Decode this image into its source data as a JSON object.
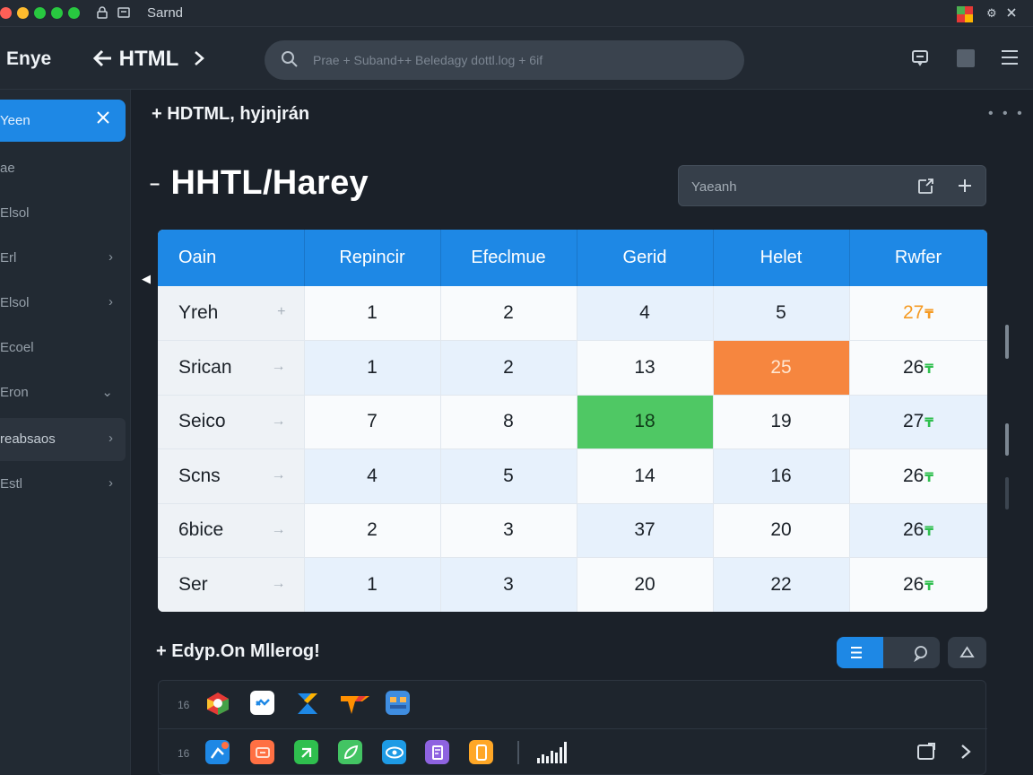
{
  "titlebar": {
    "title": "Sarnd",
    "traffic_colors": [
      "#ff5f57",
      "#febc2e",
      "#28c840",
      "#28c840",
      "#28c840"
    ]
  },
  "nav": {
    "brand": "Enye",
    "crumb": "HTML",
    "search_placeholder": "Prae + Suband++ Beledagy dottl.log + 6if"
  },
  "sidebar": {
    "active": {
      "label": "Yeen"
    },
    "items": [
      {
        "label": "ae",
        "chevron": ""
      },
      {
        "label": "Elsol",
        "chevron": ""
      },
      {
        "label": "Erl",
        "chevron": "›"
      },
      {
        "label": "Elsol",
        "chevron": "›"
      },
      {
        "label": "Ecoel",
        "chevron": ""
      },
      {
        "label": "Eron",
        "chevron": "⌄"
      },
      {
        "label": "reabsaos",
        "chevron": "›"
      },
      {
        "label": "Estl",
        "chevron": "›"
      }
    ]
  },
  "main": {
    "section1": "HDTML, hyjnjrán",
    "title": "HHTL/Harey",
    "filter_placeholder": "Yaeanh",
    "section2": "Edyp.On Mllerog!"
  },
  "table": {
    "columns": [
      "Oain",
      "Repincir",
      "Efeclmue",
      "Gerid",
      "Helet",
      "Rwfer"
    ],
    "rows": [
      {
        "name": "Yreh",
        "cells": [
          "1",
          "2",
          "4",
          "5",
          "27"
        ],
        "suffix_color": "#f59a23",
        "last_color": "#f59a23"
      },
      {
        "name": "Srican",
        "cells": [
          "1",
          "2",
          "13",
          "25",
          "26"
        ],
        "suffix_color": "#2fbf4e",
        "last_color": "#1b2128"
      },
      {
        "name": "Seico",
        "cells": [
          "7",
          "8",
          "18",
          "19",
          "27"
        ],
        "suffix_color": "#2fbf4e",
        "last_color": "#1b2128"
      },
      {
        "name": "Scns",
        "cells": [
          "4",
          "5",
          "14",
          "16",
          "26"
        ],
        "suffix_color": "#2fbf4e",
        "last_color": "#1b2128"
      },
      {
        "name": "6bice",
        "cells": [
          "2",
          "3",
          "37",
          "20",
          "26"
        ],
        "suffix_color": "#2fbf4e",
        "last_color": "#1b2128"
      },
      {
        "name": "Ser",
        "cells": [
          "1",
          "3",
          "20",
          "22",
          "26"
        ],
        "suffix_color": "#2fbf4e",
        "last_color": "#1b2128"
      }
    ],
    "highlight_orange": "#f6863f",
    "highlight_green": "#4fc864"
  },
  "apps": {
    "row1_num": "16",
    "row2_num": "16"
  }
}
